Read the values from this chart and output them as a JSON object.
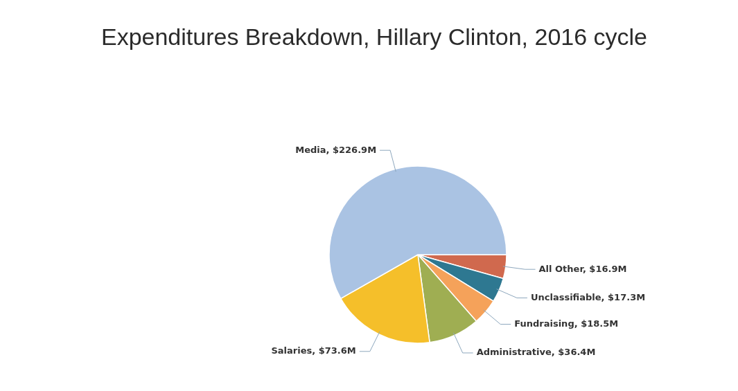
{
  "chart_data": {
    "type": "pie",
    "title": "Expenditures Breakdown, Hillary Clinton, 2016 cycle",
    "categories": [
      "All Other",
      "Unclassifiable",
      "Fundraising",
      "Administrative",
      "Salaries",
      "Media"
    ],
    "values": [
      16.9,
      17.3,
      18.5,
      36.4,
      73.6,
      226.9
    ],
    "value_labels": [
      "$16.9M",
      "$17.3M",
      "$18.5M",
      "$36.4M",
      "$73.6M",
      "$226.9M"
    ],
    "colors": [
      "#d0694e",
      "#2e7891",
      "#f5a25a",
      "#9fae52",
      "#f5bf2a",
      "#aac3e3"
    ],
    "legend": false
  }
}
